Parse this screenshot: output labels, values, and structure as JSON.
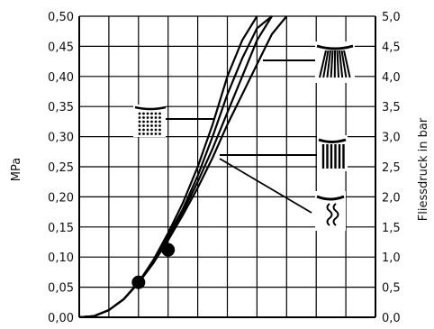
{
  "chart_data": {
    "type": "line",
    "ylabel_left": "MPa",
    "ylabel_right": "Fliessdruck in bar",
    "ylim_left": [
      0,
      0.5
    ],
    "ylim_right": [
      0,
      5
    ],
    "left_ticks": [
      "0,00",
      "0,05",
      "0,10",
      "0,15",
      "0,20",
      "0,25",
      "0,30",
      "0,35",
      "0,40",
      "0,45",
      "0,50"
    ],
    "right_ticks": [
      "0,0",
      "0,5",
      "1,0",
      "1,5",
      "2,0",
      "2,5",
      "3,0",
      "3,5",
      "4,0",
      "4,5",
      "5,0"
    ],
    "x_grid_count": 10,
    "grid": true,
    "series": [
      {
        "x": [
          0,
          0.5,
          1,
          1.5,
          2,
          2.5,
          3,
          3.5,
          4,
          4.5,
          5,
          5.5,
          6
        ],
        "values": [
          0,
          0.002,
          0.012,
          0.03,
          0.058,
          0.095,
          0.14,
          0.19,
          0.25,
          0.32,
          0.4,
          0.46,
          0.5
        ]
      },
      {
        "x": [
          0,
          0.5,
          1,
          1.5,
          2,
          2.5,
          3,
          3.5,
          4,
          4.5,
          5,
          5.5,
          6,
          6.5
        ],
        "values": [
          0,
          0.002,
          0.012,
          0.03,
          0.058,
          0.093,
          0.135,
          0.18,
          0.235,
          0.3,
          0.37,
          0.43,
          0.48,
          0.5
        ]
      },
      {
        "x": [
          0,
          0.5,
          1,
          1.5,
          2,
          2.5,
          3,
          3.5,
          4,
          4.5,
          5,
          5.5,
          6,
          6.5
        ],
        "values": [
          0,
          0.002,
          0.012,
          0.03,
          0.057,
          0.09,
          0.13,
          0.175,
          0.225,
          0.28,
          0.34,
          0.4,
          0.46,
          0.5
        ]
      },
      {
        "x": [
          0,
          0.5,
          1,
          1.5,
          2,
          2.5,
          3,
          3.5,
          4,
          4.5,
          5,
          5.5,
          6,
          6.5,
          7
        ],
        "values": [
          0,
          0.002,
          0.012,
          0.03,
          0.057,
          0.09,
          0.128,
          0.17,
          0.215,
          0.265,
          0.32,
          0.37,
          0.42,
          0.47,
          0.5
        ]
      }
    ],
    "markers": [
      {
        "x": 2,
        "y": 0.058
      },
      {
        "x": 3,
        "y": 0.112
      }
    ]
  }
}
